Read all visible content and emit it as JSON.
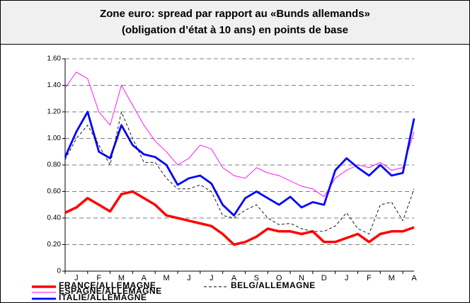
{
  "chart_data": {
    "type": "line",
    "title": [
      "Zone euro: spread par rapport au «Bunds allemands»",
      "(obligation d’état à 10 ans) en points de base"
    ],
    "categories": [
      null,
      "J",
      null,
      "F",
      null,
      "M",
      null,
      "A",
      null,
      "M",
      null,
      "J",
      null,
      "J",
      null,
      "A",
      null,
      "S",
      null,
      "O",
      null,
      "N",
      null,
      "D",
      null,
      "J",
      null,
      "F",
      null,
      "M",
      null,
      "A"
    ],
    "series": [
      {
        "name": "FRANCE/ALLEMAGNE",
        "color": "#ff0000",
        "values": [
          0.44,
          0.48,
          0.55,
          0.5,
          0.45,
          0.58,
          0.6,
          0.55,
          0.5,
          0.42,
          0.4,
          0.38,
          0.36,
          0.34,
          0.28,
          0.2,
          0.22,
          0.26,
          0.32,
          0.3,
          0.3,
          0.28,
          0.3,
          0.22,
          0.22,
          0.25,
          0.28,
          0.22,
          0.28,
          0.3,
          0.3,
          0.33
        ]
      },
      {
        "name": "ESPAGNE/ALLEMAGNE",
        "color": "#ff00ff",
        "values": [
          1.38,
          1.5,
          1.45,
          1.2,
          1.1,
          1.4,
          1.25,
          1.1,
          0.98,
          0.9,
          0.8,
          0.85,
          0.95,
          0.92,
          0.78,
          0.72,
          0.7,
          0.78,
          0.74,
          0.72,
          0.68,
          0.64,
          0.62,
          0.56,
          0.7,
          0.76,
          0.8,
          0.78,
          0.82,
          0.76,
          0.78,
          1.05
        ]
      },
      {
        "name": "ITALIE/ALLEMAGNE",
        "color": "#0000ff",
        "values": [
          0.86,
          1.05,
          1.2,
          0.9,
          0.85,
          1.1,
          0.95,
          0.88,
          0.86,
          0.8,
          0.65,
          0.7,
          0.72,
          0.66,
          0.5,
          0.42,
          0.55,
          0.6,
          0.55,
          0.5,
          0.56,
          0.48,
          0.52,
          0.5,
          0.76,
          0.85,
          0.78,
          0.72,
          0.8,
          0.72,
          0.74,
          1.15
        ]
      },
      {
        "name": "BELG/ALLEMAGNE",
        "color": "#000000",
        "values": [
          0.84,
          1.0,
          1.1,
          0.95,
          0.8,
          1.2,
          1.0,
          0.82,
          0.82,
          0.7,
          0.62,
          0.62,
          0.65,
          0.6,
          0.42,
          0.4,
          0.46,
          0.5,
          0.4,
          0.35,
          0.36,
          0.32,
          0.3,
          0.3,
          0.34,
          0.44,
          0.32,
          0.28,
          0.5,
          0.52,
          0.38,
          0.62
        ]
      }
    ],
    "ylim": [
      0,
      1.6
    ],
    "yticks": [
      0,
      {
        "value": 0.2,
        "label": "0.20"
      },
      {
        "value": 0.4,
        "label": "0.40"
      },
      {
        "value": 0.6,
        "label": "0.60"
      },
      {
        "value": 0.8,
        "label": "0.80"
      },
      {
        "value": 1,
        "label": "1.00"
      },
      {
        "value": 1.2,
        "label": "1.20"
      },
      {
        "value": 1.4,
        "label": "1.40"
      },
      {
        "value": 1.6,
        "label": "1.60"
      }
    ],
    "grid": true
  }
}
